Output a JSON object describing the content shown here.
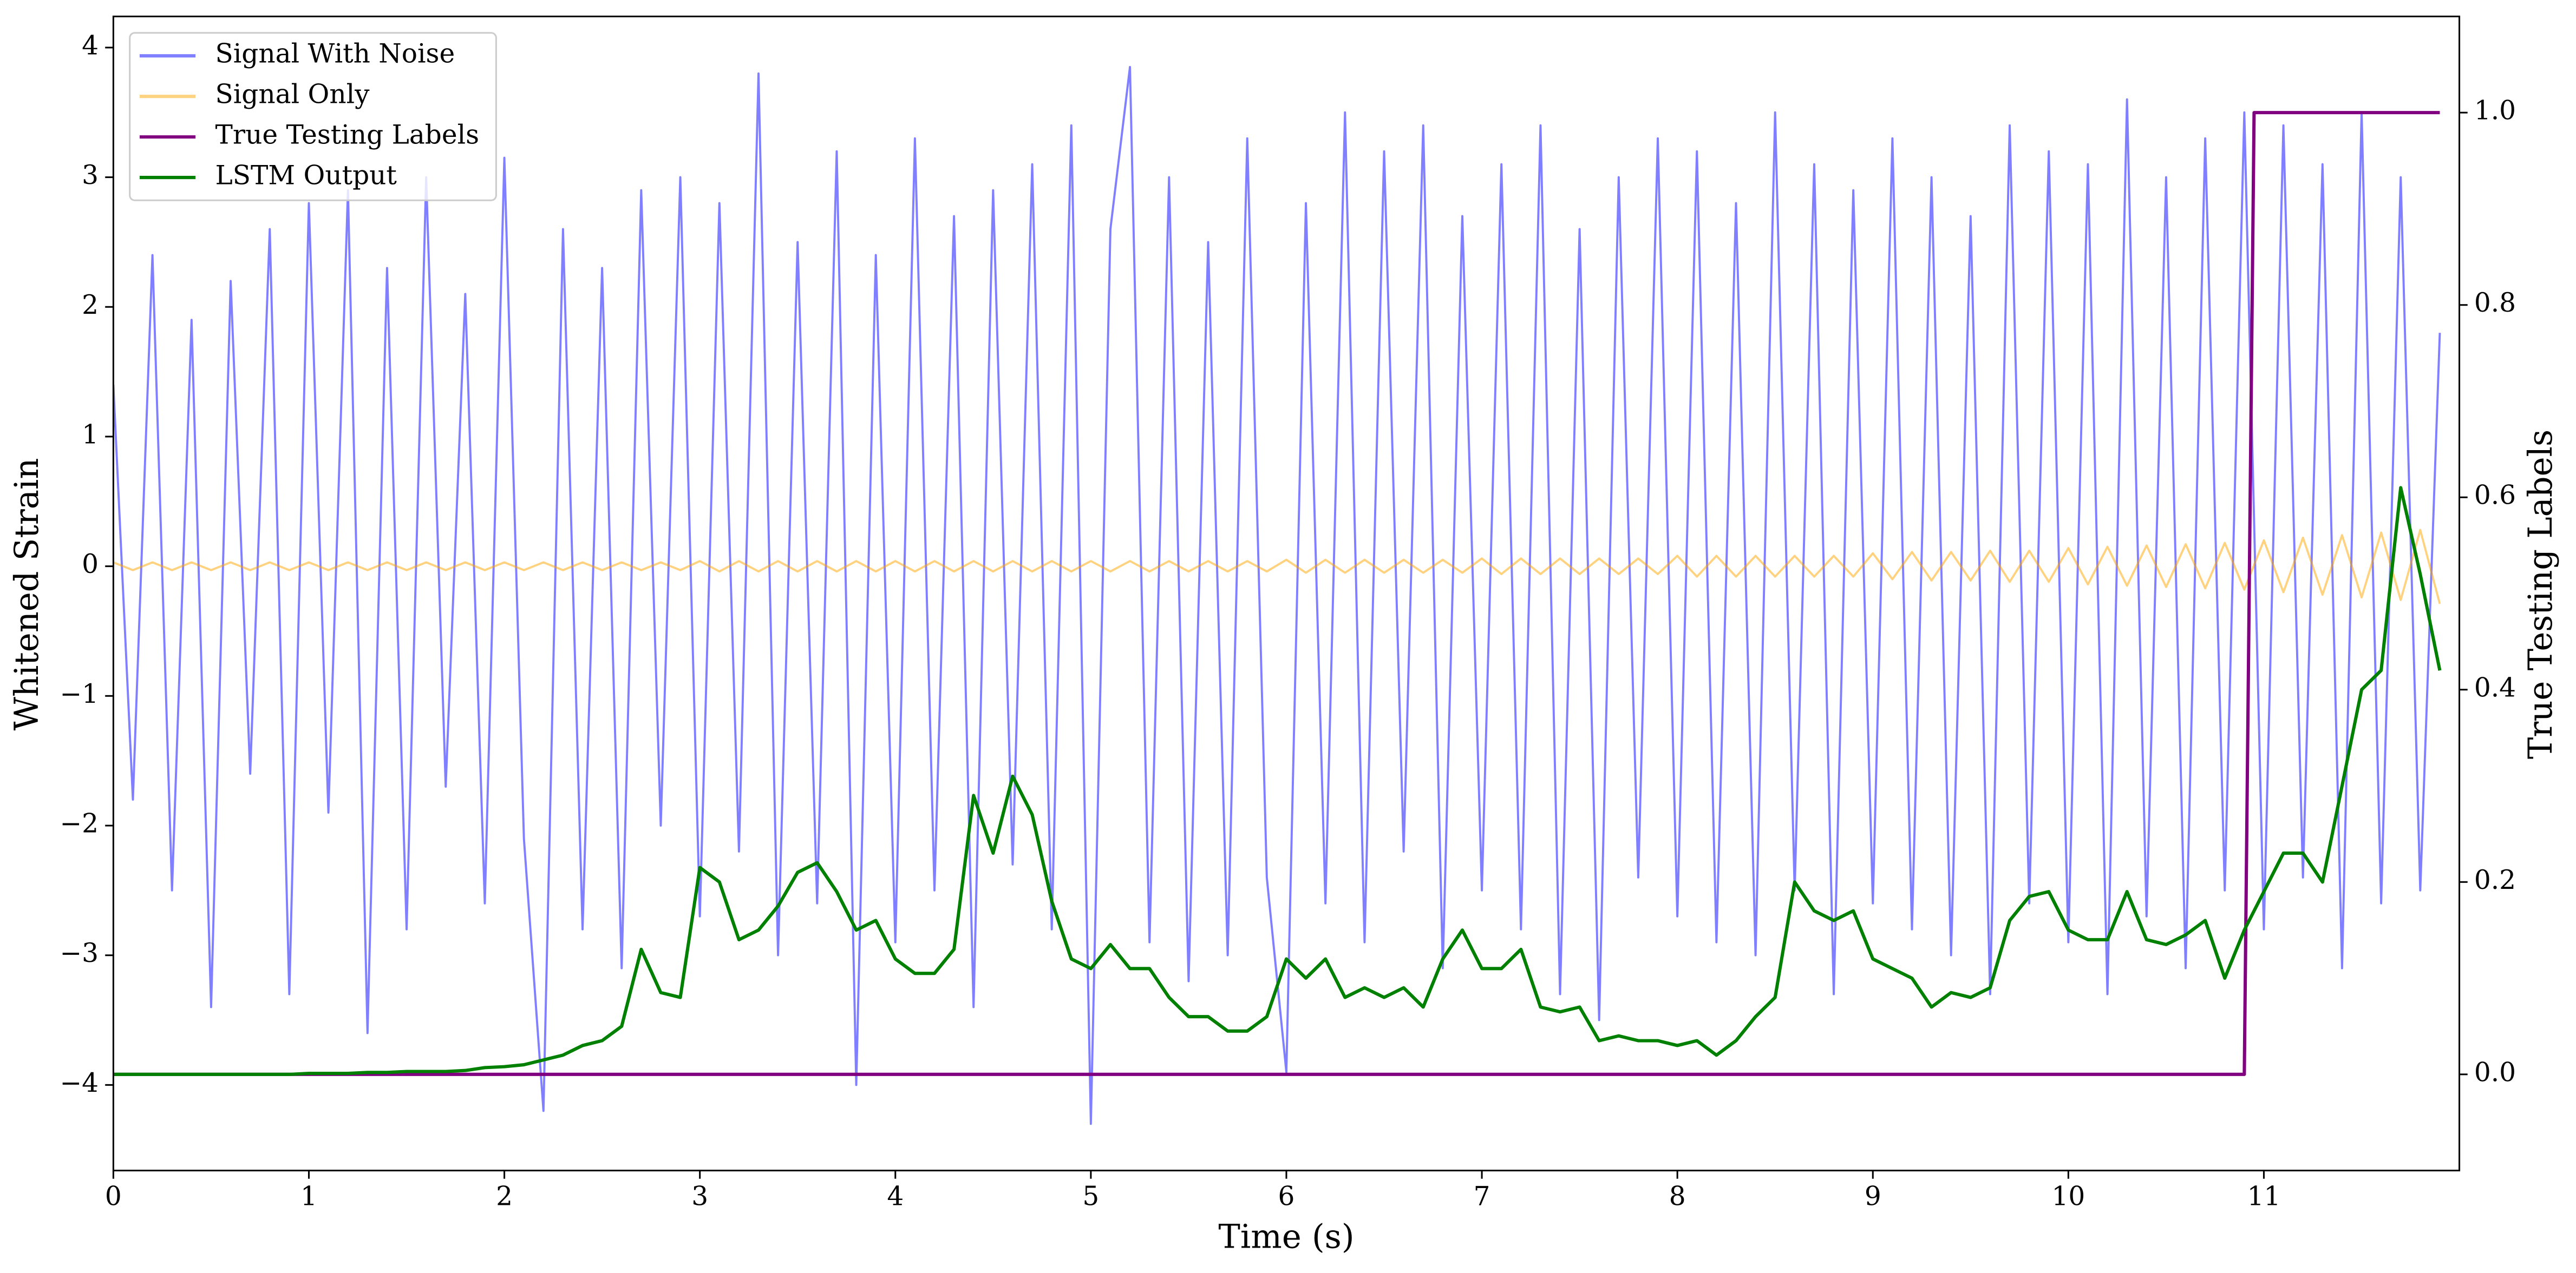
{
  "chart_data": {
    "type": "line",
    "xlabel": "Time (s)",
    "ylabel": "Whitened Strain",
    "y2label": "True Testing Labels",
    "legend": "upper left",
    "xlim": [
      0,
      12
    ],
    "ylim": [
      -4.66,
      4.24
    ],
    "y2lim": [
      -0.1,
      1.1
    ],
    "xticks": [
      0,
      1,
      2,
      3,
      4,
      5,
      6,
      7,
      8,
      9,
      10,
      11
    ],
    "yticks": [
      {
        "value": -4,
        "label": "−4"
      },
      {
        "value": -3,
        "label": "−3"
      },
      {
        "value": -2,
        "label": "−2"
      },
      {
        "value": -1,
        "label": "−1"
      },
      0,
      1,
      2,
      3,
      4
    ],
    "y2ticks": [
      {
        "value": 0,
        "label": "0.0"
      },
      0.2,
      0.4,
      0.6,
      0.8,
      {
        "value": 1,
        "label": "1.0"
      }
    ],
    "x": [
      0,
      0.1,
      0.2,
      0.3,
      0.4,
      0.5,
      0.6,
      0.7,
      0.8,
      0.9,
      1,
      1.1,
      1.2,
      1.3,
      1.4,
      1.5,
      1.6,
      1.7,
      1.8,
      1.9,
      2,
      2.1,
      2.2,
      2.3,
      2.4,
      2.5,
      2.6,
      2.7,
      2.8,
      2.9,
      3,
      3.1,
      3.2,
      3.3,
      3.4,
      3.5,
      3.6,
      3.7,
      3.8,
      3.9,
      4,
      4.1,
      4.2,
      4.3,
      4.4,
      4.5,
      4.6,
      4.7,
      4.8,
      4.9,
      5,
      5.1,
      5.2,
      5.3,
      5.4,
      5.5,
      5.6,
      5.7,
      5.8,
      5.9,
      6,
      6.1,
      6.2,
      6.3,
      6.4,
      6.5,
      6.6,
      6.7,
      6.8,
      6.9,
      7,
      7.1,
      7.2,
      7.3,
      7.4,
      7.5,
      7.6,
      7.7,
      7.8,
      7.9,
      8,
      8.1,
      8.2,
      8.3,
      8.4,
      8.5,
      8.6,
      8.7,
      8.8,
      8.9,
      9,
      9.1,
      9.2,
      9.3,
      9.4,
      9.5,
      9.6,
      9.7,
      9.8,
      9.9,
      10,
      10.1,
      10.2,
      10.3,
      10.4,
      10.5,
      10.6,
      10.7,
      10.8,
      10.9,
      11,
      11.1,
      11.2,
      11.3,
      11.4,
      11.5,
      11.6,
      11.7,
      11.8,
      11.9
    ],
    "series": [
      {
        "name": "Signal With Noise",
        "color": "#0000ff",
        "alpha": 0.5,
        "values": [
          1.4,
          -1.8,
          2.4,
          -2.5,
          1.9,
          -3.4,
          2.2,
          -1.6,
          2.6,
          -3.3,
          2.8,
          -1.9,
          2.9,
          -3.6,
          2.3,
          -2.8,
          3.0,
          -1.7,
          2.1,
          -2.6,
          3.15,
          -2.1,
          -4.2,
          2.6,
          -2.8,
          2.3,
          -3.1,
          2.9,
          -2.0,
          3.0,
          -2.7,
          2.8,
          -2.2,
          3.8,
          -3.0,
          2.5,
          -2.6,
          3.2,
          -4.0,
          2.4,
          -2.9,
          3.3,
          -2.5,
          2.7,
          -3.4,
          2.9,
          -2.3,
          3.1,
          -2.8,
          3.4,
          -4.3,
          2.6,
          3.85,
          -2.9,
          3.0,
          -3.2,
          2.5,
          -3.0,
          3.3,
          -2.4,
          -3.9,
          2.8,
          -2.6,
          3.5,
          -2.9,
          3.2,
          -2.2,
          3.4,
          -3.1,
          2.7,
          -2.5,
          3.1,
          -2.8,
          3.4,
          -3.3,
          2.6,
          -3.5,
          3.0,
          -2.4,
          3.3,
          -2.7,
          3.2,
          -2.9,
          2.8,
          -3.0,
          3.5,
          -2.5,
          3.1,
          -3.3,
          2.9,
          -2.6,
          3.3,
          -2.8,
          3.0,
          -3.0,
          2.7,
          -3.3,
          3.4,
          -2.6,
          3.2,
          -2.9,
          3.1,
          -3.3,
          3.6,
          -2.7,
          3.0,
          -3.1,
          3.3,
          -2.5,
          3.5,
          -2.8,
          3.4,
          -2.4,
          3.1,
          -3.1,
          3.5,
          -2.6,
          3.0,
          -2.5,
          1.8
        ]
      },
      {
        "name": "Signal Only",
        "color": "#ffa500",
        "alpha": 0.5,
        "values": [
          0.03,
          -0.03,
          0.03,
          -0.03,
          0.03,
          -0.03,
          0.03,
          -0.03,
          0.03,
          -0.03,
          0.03,
          -0.03,
          0.03,
          -0.03,
          0.03,
          -0.03,
          0.03,
          -0.03,
          0.03,
          -0.03,
          0.03,
          -0.03,
          0.03,
          -0.03,
          0.03,
          -0.03,
          0.03,
          -0.03,
          0.03,
          -0.03,
          0.04,
          -0.04,
          0.04,
          -0.04,
          0.04,
          -0.04,
          0.04,
          -0.04,
          0.04,
          -0.04,
          0.04,
          -0.04,
          0.04,
          -0.04,
          0.04,
          -0.04,
          0.04,
          -0.04,
          0.04,
          -0.04,
          0.04,
          -0.04,
          0.04,
          -0.04,
          0.04,
          -0.04,
          0.04,
          -0.04,
          0.04,
          -0.04,
          0.05,
          -0.05,
          0.05,
          -0.05,
          0.05,
          -0.05,
          0.05,
          -0.05,
          0.05,
          -0.05,
          0.06,
          -0.06,
          0.06,
          -0.06,
          0.06,
          -0.06,
          0.06,
          -0.06,
          0.06,
          -0.06,
          0.08,
          -0.08,
          0.08,
          -0.08,
          0.08,
          -0.08,
          0.08,
          -0.08,
          0.08,
          -0.08,
          0.1,
          -0.1,
          0.11,
          -0.11,
          0.11,
          -0.11,
          0.12,
          -0.12,
          0.12,
          -0.12,
          0.14,
          -0.14,
          0.15,
          -0.15,
          0.16,
          -0.16,
          0.17,
          -0.17,
          0.18,
          -0.18,
          0.2,
          -0.2,
          0.22,
          -0.22,
          0.24,
          -0.24,
          0.26,
          -0.26,
          0.28,
          -0.29
        ]
      },
      {
        "name": "True Testing Labels",
        "color": "#800080",
        "axis": "y2",
        "x": [
          0,
          10.9,
          10.95,
          11.9
        ],
        "values": [
          0,
          0,
          1,
          1
        ]
      },
      {
        "name": "LSTM Output",
        "color": "#008000",
        "axis": "y2",
        "values": [
          0,
          0,
          0,
          0,
          0,
          0,
          0,
          0,
          0,
          0,
          0.001,
          0.001,
          0.001,
          0.002,
          0.002,
          0.003,
          0.003,
          0.003,
          0.004,
          0.007,
          0.008,
          0.01,
          0.015,
          0.02,
          0.03,
          0.035,
          0.05,
          0.13,
          0.085,
          0.08,
          0.215,
          0.2,
          0.14,
          0.15,
          0.175,
          0.21,
          0.22,
          0.19,
          0.15,
          0.16,
          0.12,
          0.105,
          0.105,
          0.13,
          0.29,
          0.23,
          0.31,
          0.27,
          0.18,
          0.12,
          0.11,
          0.135,
          0.11,
          0.11,
          0.08,
          0.06,
          0.06,
          0.045,
          0.045,
          0.06,
          0.12,
          0.1,
          0.12,
          0.08,
          0.09,
          0.08,
          0.09,
          0.07,
          0.12,
          0.15,
          0.11,
          0.11,
          0.13,
          0.07,
          0.065,
          0.07,
          0.035,
          0.04,
          0.035,
          0.035,
          0.03,
          0.035,
          0.02,
          0.035,
          0.06,
          0.08,
          0.2,
          0.17,
          0.16,
          0.17,
          0.12,
          0.11,
          0.1,
          0.07,
          0.085,
          0.08,
          0.09,
          0.16,
          0.185,
          0.19,
          0.15,
          0.14,
          0.14,
          0.19,
          0.14,
          0.135,
          0.145,
          0.16,
          0.1,
          0.15,
          0.19,
          0.23,
          0.23,
          0.2,
          0.3,
          0.4,
          0.42,
          0.61,
          0.52,
          0.42
        ]
      }
    ]
  }
}
